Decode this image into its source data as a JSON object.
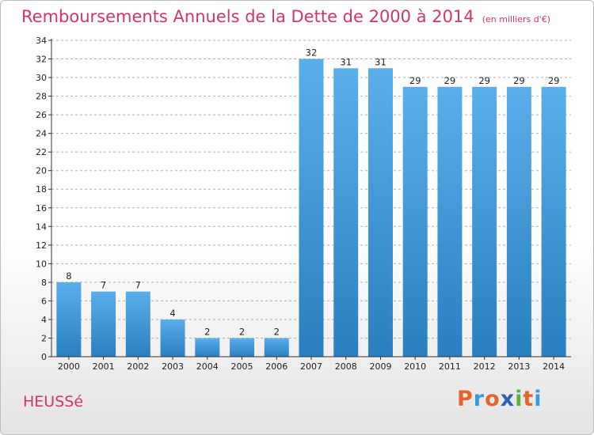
{
  "header": {
    "title": "Remboursements Annuels de la Dette de 2000 à 2014",
    "unit": "(en milliers d'€)"
  },
  "footer": {
    "commune": "HEUSSé",
    "logo_letters": [
      "P",
      "r",
      "o",
      "x",
      "i",
      "t",
      "i"
    ],
    "logo_colors": [
      "#e8632b",
      "#3a9ad9",
      "#e8632b",
      "#2f5fb8",
      "#59b33a",
      "#e8632b",
      "#3a9ad9"
    ]
  },
  "colors": {
    "title": "#d6336c",
    "bar_light": "#5aaeea",
    "bar_dark": "#2a7fc0",
    "grid": "#b0b0b0"
  },
  "chart_data": {
    "type": "bar",
    "title": "Remboursements Annuels de la Dette de 2000 à 2014",
    "subtitle": "(en milliers d'€)",
    "categories": [
      "2000",
      "2001",
      "2002",
      "2003",
      "2004",
      "2005",
      "2006",
      "2007",
      "2008",
      "2009",
      "2010",
      "2011",
      "2012",
      "2013",
      "2014"
    ],
    "values": [
      8,
      7,
      7,
      4,
      2,
      2,
      2,
      32,
      31,
      31,
      29,
      29,
      29,
      29,
      29
    ],
    "yticks": [
      "0",
      "2",
      "4",
      "6",
      "8",
      "10",
      "12",
      "14",
      "16",
      "18",
      "20",
      "22",
      "24",
      "26",
      "28",
      "30",
      "32",
      "34"
    ],
    "ylim": [
      0,
      34
    ],
    "grid": true,
    "legend": "none"
  }
}
